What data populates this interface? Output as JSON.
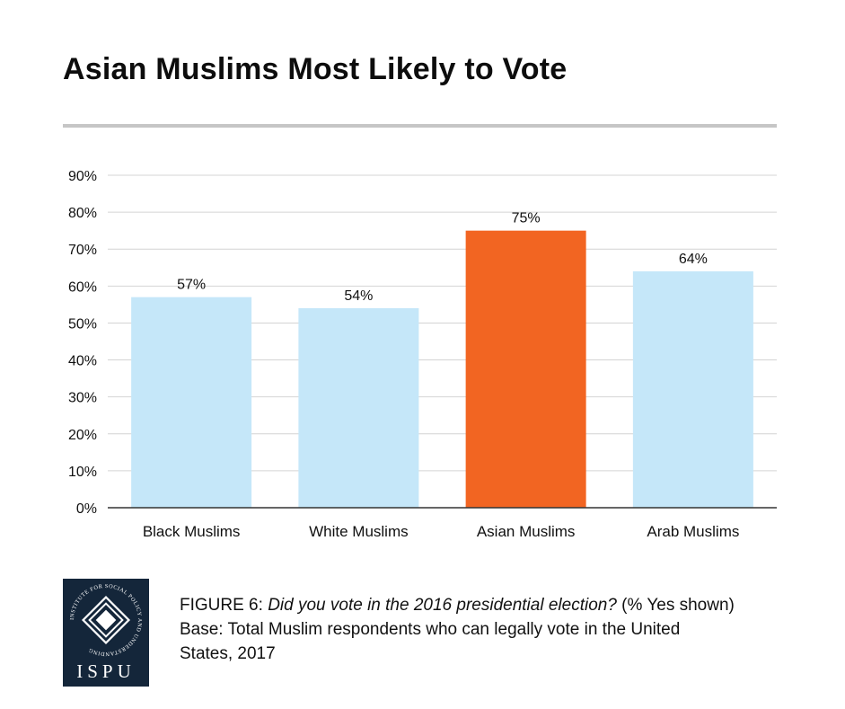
{
  "chart_data": {
    "type": "bar",
    "title": "Asian Muslims Most Likely to Vote",
    "categories": [
      "Black Muslims",
      "White Muslims",
      "Asian Muslims",
      "Arab Muslims"
    ],
    "values": [
      57,
      54,
      75,
      64
    ],
    "value_labels": [
      "57%",
      "54%",
      "75%",
      "64%"
    ],
    "bar_colors": [
      "#c5e7f9",
      "#c5e7f9",
      "#f26522",
      "#c5e7f9"
    ],
    "ylim": [
      0,
      90
    ],
    "yticks": [
      0,
      10,
      20,
      30,
      40,
      50,
      60,
      70,
      80,
      90
    ],
    "ytick_labels": [
      "0%",
      "10%",
      "20%",
      "30%",
      "40%",
      "50%",
      "60%",
      "70%",
      "80%",
      "90%"
    ],
    "grid": true,
    "xlabel": "",
    "ylabel": ""
  },
  "caption": {
    "figure_label": "FIGURE 6",
    "separator": ": ",
    "question": "Did you vote in the 2016 presidential election?",
    "note": " (% Yes shown)",
    "base_line1": "Base: Total Muslim respondents who can legally vote in the United",
    "base_line2": "States, 2017"
  },
  "logo": {
    "text": "ISPU",
    "ring_text": "INSTITUTE FOR SOCIAL POLICY AND UNDERSTANDING"
  },
  "colors": {
    "accent": "#f26522",
    "bar": "#c5e7f9",
    "logo_bg": "#14263a",
    "rule": "#c6c6c6",
    "grid": "#d4d4d4"
  }
}
